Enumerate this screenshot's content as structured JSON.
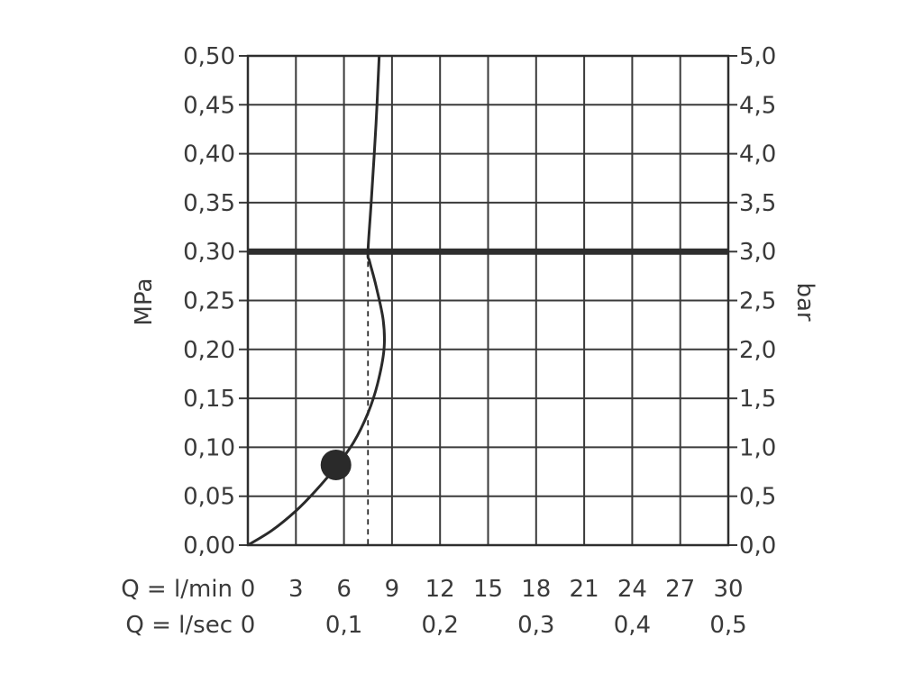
{
  "chart_data": {
    "type": "line",
    "title": "",
    "left_axis": {
      "label": "MPa",
      "ticks": [
        "0,00",
        "0,05",
        "0,10",
        "0,15",
        "0,20",
        "0,25",
        "0,30",
        "0,35",
        "0,40",
        "0,45",
        "0,50"
      ],
      "ylim": [
        0,
        0.5
      ]
    },
    "right_axis": {
      "label": "bar",
      "ticks": [
        "0,0",
        "0,5",
        "1,0",
        "1,5",
        "2,0",
        "2,5",
        "3,0",
        "3,5",
        "4,0",
        "4,5",
        "5,0"
      ],
      "ylim": [
        0,
        5
      ]
    },
    "x_axis_lmin": {
      "label": "Q = l/min",
      "ticks": [
        "0",
        "3",
        "6",
        "9",
        "12",
        "15",
        "18",
        "21",
        "24",
        "27",
        "30"
      ],
      "values": [
        0,
        3,
        6,
        9,
        12,
        15,
        18,
        21,
        24,
        27,
        30
      ],
      "xlim": [
        0,
        30
      ]
    },
    "x_axis_lsec": {
      "label": "Q = l/sec",
      "ticks": [
        "0",
        "0,1",
        "0,2",
        "0,3",
        "0,4",
        "0,5"
      ],
      "values": [
        0,
        0.1,
        0.2,
        0.3,
        0.4,
        0.5
      ]
    },
    "grid": true,
    "series": [
      {
        "x": [
          0,
          1.5,
          3,
          4.2,
          5.5,
          6.6,
          7.5,
          8.1,
          8.5,
          8.45,
          8.0,
          7.6,
          7.5,
          7.7,
          8.0,
          8.2
        ],
        "y": [
          0,
          0.015,
          0.035,
          0.055,
          0.08,
          0.105,
          0.135,
          0.165,
          0.2,
          0.23,
          0.265,
          0.29,
          0.3,
          0.35,
          0.43,
          0.5
        ]
      }
    ],
    "reference_line": {
      "y": 0.3
    },
    "marker": {
      "x": 5.5,
      "y": 0.082
    },
    "dashed_drop": {
      "x": 7.5,
      "from_y": 0.3,
      "to_y": 0
    }
  }
}
